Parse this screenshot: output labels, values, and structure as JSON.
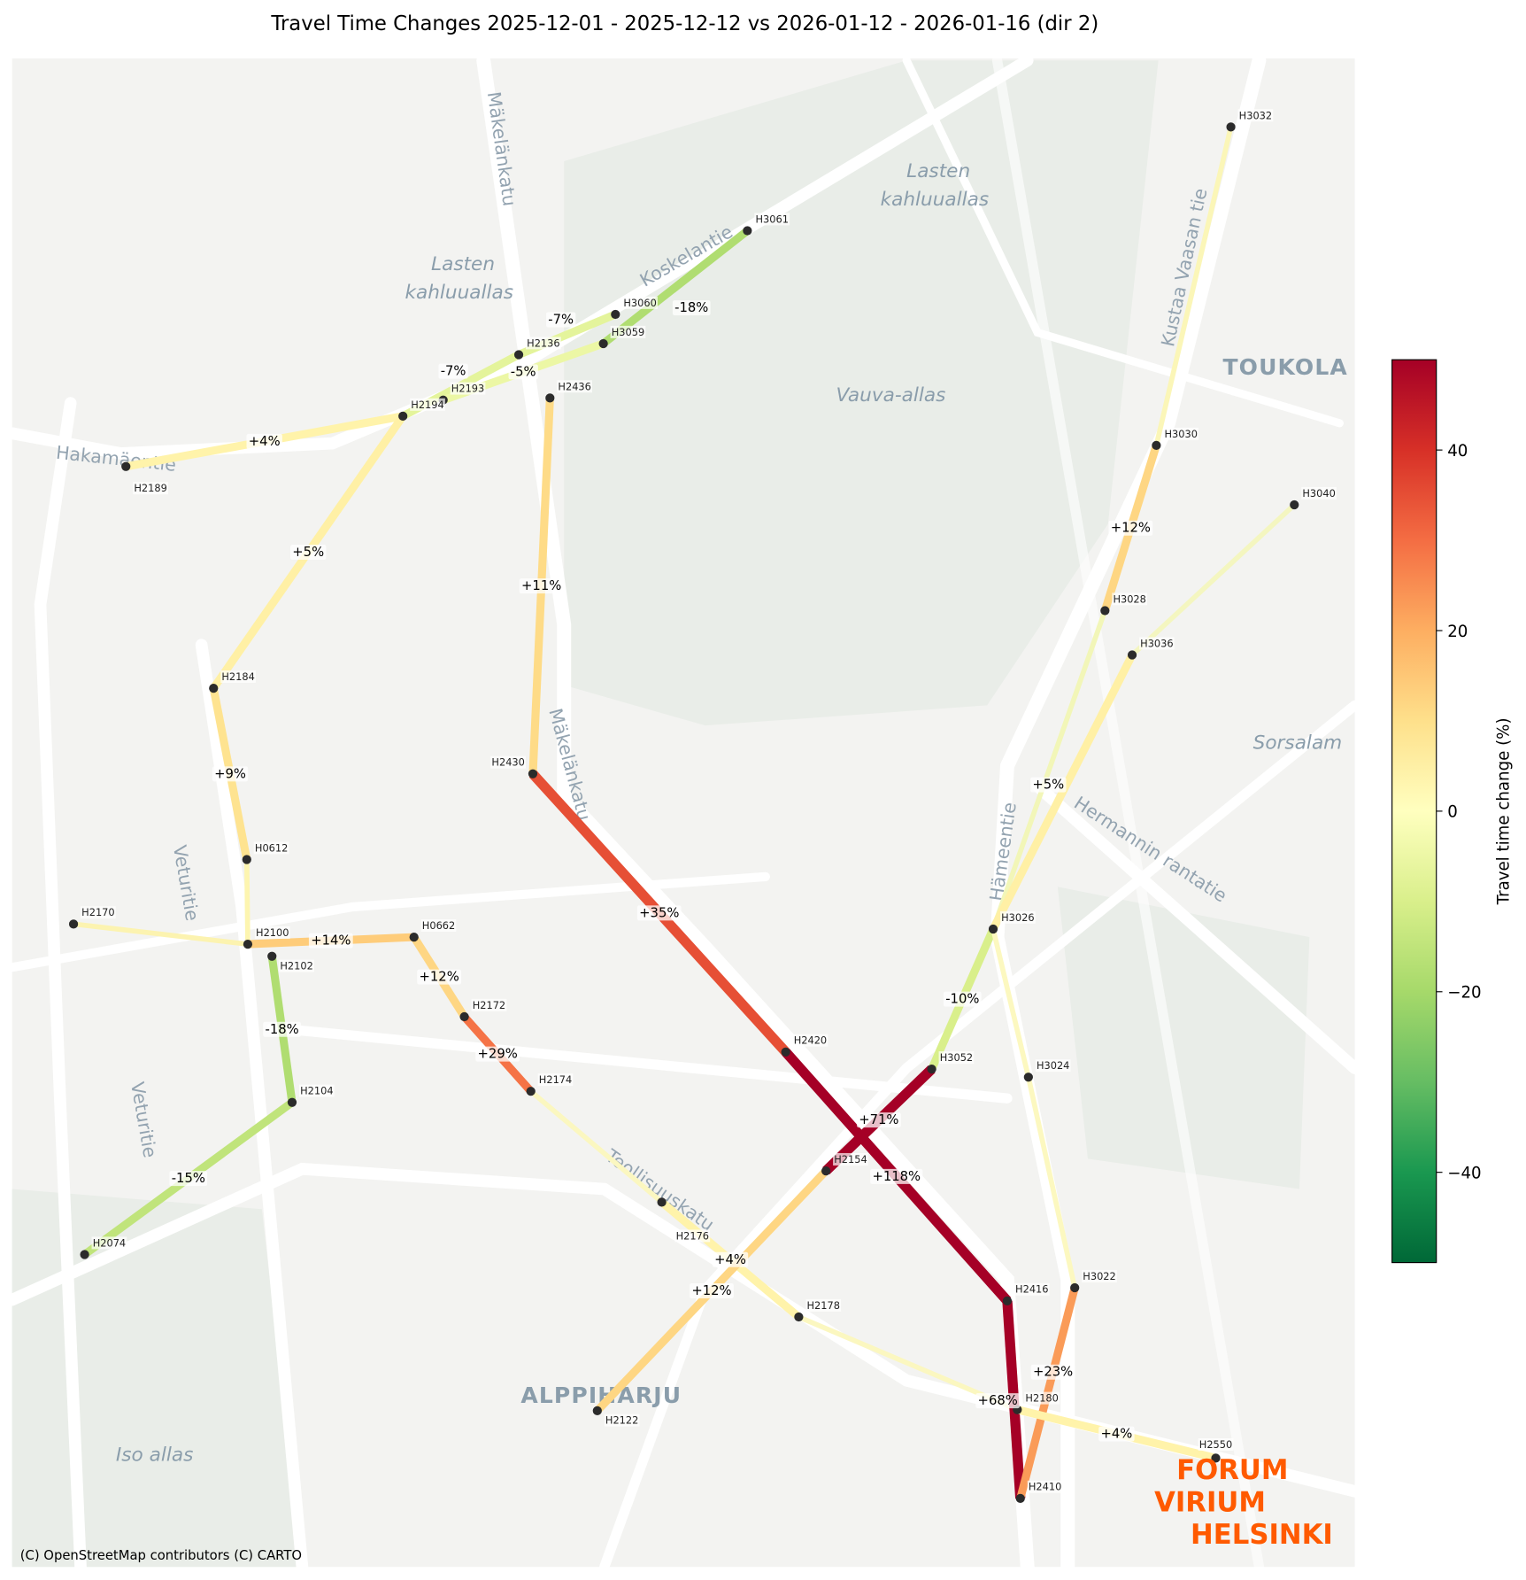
{
  "title": "Travel Time Changes 2025-12-01 - 2025-12-12 vs 2026-01-12 - 2026-01-16  (dir 2)",
  "attribution": "(C) OpenStreetMap contributors (C) CARTO",
  "logo": [
    "FORUM",
    "VIRIUM",
    "HELSINKI"
  ],
  "colorbar": {
    "label": "Travel time change (%)",
    "colormap": "RdYlGn_r",
    "range": [
      -50,
      50
    ],
    "ticks": [
      {
        "v": 40,
        "t": "40"
      },
      {
        "v": 20,
        "t": "20"
      },
      {
        "v": 0,
        "t": "0"
      },
      {
        "v": -20,
        "t": "−20"
      },
      {
        "v": -40,
        "t": "−40"
      }
    ]
  },
  "place_labels": [
    "Mäkelänkatu",
    "Lasten",
    "kahluuallas",
    "Lasten",
    "kahluuallas",
    "Vauva-allas",
    "TOUKOLA",
    "Hakamäentie",
    "Veturitie",
    "Veturitie",
    "Kustaa Vaasan tie",
    "Hämeentie",
    "Hermannin rantatie",
    "Sorsalam",
    "ALPPIHARJU",
    "Iso allas",
    "Mäkelänkatu",
    "Koskelantie",
    "Teollisuuskatu"
  ],
  "stops": [
    {
      "id": "H3032",
      "lon": 1222,
      "lat": 126
    },
    {
      "id": "H3061",
      "lon": 742,
      "lat": 229
    },
    {
      "id": "H3060",
      "lon": 611,
      "lat": 312
    },
    {
      "id": "H3059",
      "lon": 599,
      "lat": 341
    },
    {
      "id": "H2136",
      "lon": 515,
      "lat": 352
    },
    {
      "id": "H2193",
      "lon": 440,
      "lat": 397
    },
    {
      "id": "H2194",
      "lon": 400,
      "lat": 413
    },
    {
      "id": "H2189",
      "lon": 125,
      "lat": 463
    },
    {
      "id": "H2436",
      "lon": 546,
      "lat": 395
    },
    {
      "id": "H2184",
      "lon": 212,
      "lat": 683
    },
    {
      "id": "H2430",
      "lon": 529,
      "lat": 768
    },
    {
      "id": "H0612",
      "lon": 245,
      "lat": 853
    },
    {
      "id": "H2170",
      "lon": 73,
      "lat": 917
    },
    {
      "id": "H2100",
      "lon": 246,
      "lat": 937
    },
    {
      "id": "H2102",
      "lon": 270,
      "lat": 949
    },
    {
      "id": "H0662",
      "lon": 411,
      "lat": 930
    },
    {
      "id": "H2172",
      "lon": 461,
      "lat": 1009
    },
    {
      "id": "H2104",
      "lon": 290,
      "lat": 1094
    },
    {
      "id": "H2174",
      "lon": 527,
      "lat": 1083
    },
    {
      "id": "H2074",
      "lon": 84,
      "lat": 1245
    },
    {
      "id": "H2420",
      "lon": 780,
      "lat": 1044
    },
    {
      "id": "H3052",
      "lon": 925,
      "lat": 1061
    },
    {
      "id": "H2154",
      "lon": 820,
      "lat": 1162
    },
    {
      "id": "H2176",
      "lon": 657,
      "lat": 1193
    },
    {
      "id": "H2122",
      "lon": 593,
      "lat": 1400
    },
    {
      "id": "H2178",
      "lon": 793,
      "lat": 1307
    },
    {
      "id": "H2416",
      "lon": 1000,
      "lat": 1291
    },
    {
      "id": "H3022",
      "lon": 1067,
      "lat": 1278
    },
    {
      "id": "H3024",
      "lon": 1021,
      "lat": 1069
    },
    {
      "id": "H3026",
      "lon": 986,
      "lat": 922
    },
    {
      "id": "H3028",
      "lon": 1097,
      "lat": 606
    },
    {
      "id": "H3036",
      "lon": 1124,
      "lat": 650
    },
    {
      "id": "H3030",
      "lon": 1148,
      "lat": 442
    },
    {
      "id": "H3040",
      "lon": 1285,
      "lat": 501
    },
    {
      "id": "H2180",
      "lon": 1010,
      "lat": 1399
    },
    {
      "id": "H2550",
      "lon": 1207,
      "lat": 1447
    },
    {
      "id": "H2410",
      "lon": 1013,
      "lat": 1487
    }
  ],
  "segments": [
    {
      "from": "H2189",
      "to": "H2194",
      "pct": 4,
      "label": "+4%"
    },
    {
      "from": "H2194",
      "to": "H2184",
      "pct": 5,
      "label": "+5%"
    },
    {
      "from": "H2184",
      "to": "H0612",
      "pct": 9,
      "label": "+9%"
    },
    {
      "from": "H0612",
      "to": "H2100",
      "color": "#fdf5b0",
      "label": ""
    },
    {
      "from": "H2170",
      "to": "H2100",
      "color": "#fcf3b0",
      "label": ""
    },
    {
      "from": "H2100",
      "to": "H0662",
      "pct": 14,
      "label": "+14%"
    },
    {
      "from": "H0662",
      "to": "H2172",
      "pct": 12,
      "label": "+12%"
    },
    {
      "from": "H2172",
      "to": "H2174",
      "pct": 29,
      "label": "+29%"
    },
    {
      "from": "H2174",
      "to": "H2176",
      "color": "#fbf7c0",
      "label": ""
    },
    {
      "from": "H2176",
      "to": "H2178",
      "pct": 4,
      "label": "+4%"
    },
    {
      "from": "H2178",
      "to": "H2180",
      "color": "#fbf7c0",
      "label": ""
    },
    {
      "from": "H2102",
      "to": "H2104",
      "pct": -18,
      "label": "-18%"
    },
    {
      "from": "H2104",
      "to": "H2074",
      "pct": -15,
      "label": "-15%"
    },
    {
      "from": "H2194",
      "to": "H2136",
      "pct": -7,
      "label": "-7%"
    },
    {
      "from": "H2136",
      "to": "H3060",
      "pct": -7,
      "label": "-7%"
    },
    {
      "from": "H2193",
      "to": "H3059",
      "pct": -5,
      "label": "-5%"
    },
    {
      "from": "H3059",
      "to": "H3061",
      "pct": -18,
      "label": "-18%"
    },
    {
      "from": "H2436",
      "to": "H2430",
      "pct": 11,
      "label": "+11%"
    },
    {
      "from": "H2430",
      "to": "H2420",
      "pct": 35,
      "label": "+35%"
    },
    {
      "from": "H2420",
      "to": "H2416",
      "pct": 118,
      "label": "+118%"
    },
    {
      "from": "H2416",
      "to": "H2410",
      "pct": 68,
      "label": "+68%"
    },
    {
      "from": "H2154",
      "to": "H3052",
      "pct": 71,
      "label": "+71%"
    },
    {
      "from": "H2122",
      "to": "H2154",
      "pct": 12,
      "label": "+12%"
    },
    {
      "from": "H3052",
      "to": "H3026",
      "pct": -10,
      "label": "-10%"
    },
    {
      "from": "H3026",
      "to": "H3024",
      "color": "#fcf8c0",
      "label": ""
    },
    {
      "from": "H3024",
      "to": "H3022",
      "color": "#fcf8c0",
      "label": ""
    },
    {
      "from": "H3022",
      "to": "H2410",
      "pct": 23,
      "label": "+23%"
    },
    {
      "from": "H2180",
      "to": "H2550",
      "pct": 4,
      "label": "+4%"
    },
    {
      "from": "H3032",
      "to": "H3030",
      "color": "#fbf6b8",
      "label": ""
    },
    {
      "from": "H3030",
      "to": "H3028",
      "pct": 12,
      "label": "+12%"
    },
    {
      "from": "H3028",
      "to": "H3026",
      "color": "#f2f6b8",
      "label": ""
    },
    {
      "from": "H3040",
      "to": "H3036",
      "color": "#f4f6c0",
      "label": ""
    },
    {
      "from": "H3036",
      "to": "H3026",
      "pct": 5,
      "label": "+5%"
    }
  ]
}
